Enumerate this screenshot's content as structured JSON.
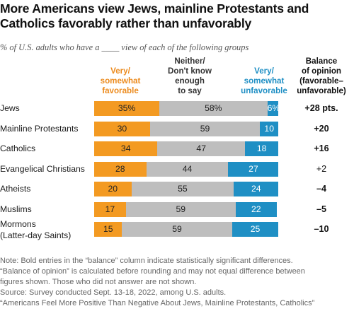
{
  "title_line1": "More Americans view Jews, mainline Protestants and",
  "title_line2": "Catholics favorably rather than unfavorably",
  "subtitle": "% of U.S. adults who have a ____ view of each of the following groups",
  "column_headers": {
    "favorable": [
      "Very/",
      "somewhat",
      "favorable"
    ],
    "neither": [
      "Neither/",
      "Don't know",
      "enough",
      "to say"
    ],
    "unfavorable": [
      "Very/",
      "somewhat",
      "unfavorable"
    ],
    "balance": [
      "Balance",
      "of opinion",
      "(favorable–",
      "unfavorable)"
    ]
  },
  "colors": {
    "favorable": "#f39a22",
    "neither": "#bebebe",
    "unfavorable": "#1f8fc4"
  },
  "chart_data": {
    "type": "bar",
    "stacked": true,
    "orientation": "horizontal",
    "categories": [
      "Jews",
      "Mainline Protestants",
      "Catholics",
      "Evangelical Christians",
      "Atheists",
      "Muslims",
      "Mormons (Latter-day Saints)"
    ],
    "category_lines": [
      [
        "Jews"
      ],
      [
        "Mainline Protestants"
      ],
      [
        "Catholics"
      ],
      [
        "Evangelical Christians"
      ],
      [
        "Atheists"
      ],
      [
        "Muslims"
      ],
      [
        "Mormons",
        "(Latter-day Saints)"
      ]
    ],
    "series": [
      {
        "name": "Very/somewhat favorable",
        "values": [
          35,
          30,
          34,
          28,
          20,
          17,
          15
        ],
        "labels": [
          "35%",
          "30",
          "34",
          "28",
          "20",
          "17",
          "15"
        ]
      },
      {
        "name": "Neither/Don't know enough to say",
        "values": [
          58,
          59,
          47,
          44,
          55,
          59,
          59
        ],
        "labels": [
          "58%",
          "59",
          "47",
          "44",
          "55",
          "59",
          "59"
        ]
      },
      {
        "name": "Very/somewhat unfavorable",
        "values": [
          6,
          10,
          18,
          27,
          24,
          22,
          25
        ],
        "labels": [
          "6%",
          "10",
          "18",
          "27",
          "24",
          "22",
          "25"
        ]
      }
    ],
    "balance": [
      "+28 pts.",
      "+20",
      "+16",
      "+2",
      "–4",
      "–5",
      "–10"
    ],
    "balance_significant": [
      true,
      true,
      true,
      false,
      true,
      true,
      true
    ],
    "xlim": [
      0,
      100
    ]
  },
  "notes": [
    "Note: Bold entries in the “balance” column indicate statistically significant differences.",
    "“Balance of opinion” is calculated before rounding and may not equal difference between",
    "figures shown. Those who did not answer are not shown.",
    "Source: Survey conducted Sept. 13-18, 2022, among U.S. adults.",
    "“Americans Feel More Positive Than Negative About Jews, Mainline Protestants, Catholics”"
  ]
}
